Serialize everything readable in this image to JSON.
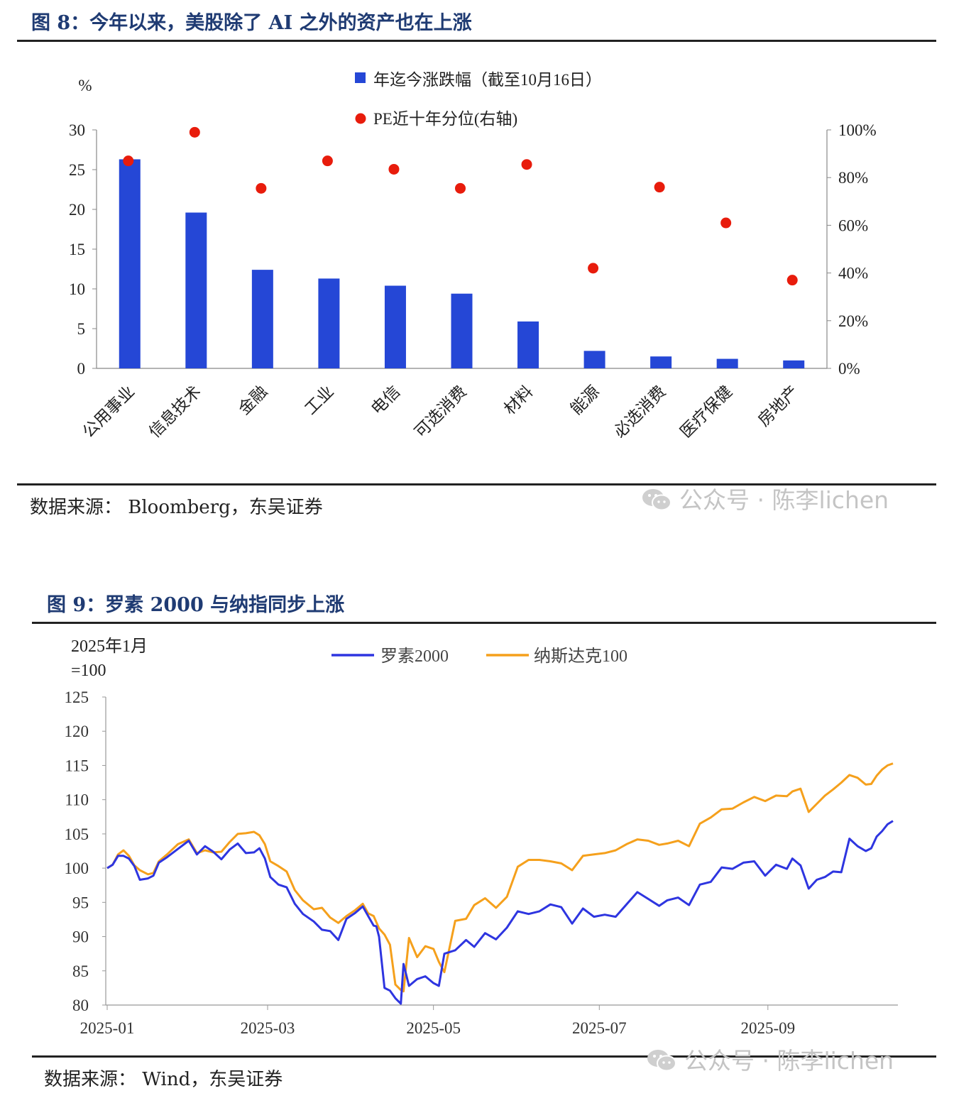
{
  "figure8": {
    "title": "图 8：今年以来，美股除了 AI 之外的资产也在上涨",
    "source": "数据来源：  Bloomberg，东吴证券",
    "watermark": "公众号 · 陈李lichen"
  },
  "figure9": {
    "title": "图 9：罗素 2000 与纳指同步上涨",
    "source": "数据来源：  Wind，东吴证券",
    "watermark": "公众号 · 陈李lichen"
  },
  "colors": {
    "bar": "#2547d6",
    "dot": "#e81c0c",
    "russell": "#2e35e0",
    "nasdaq": "#f5a01c",
    "title": "#1f3b73"
  },
  "chart_data": [
    {
      "type": "bar",
      "ylabel": "%",
      "ylim": [
        0,
        30
      ],
      "yticks": [
        "0",
        "5",
        "10",
        "15",
        "20",
        "25",
        "30"
      ],
      "y2lim": [
        0,
        100
      ],
      "y2ticks": [
        "0%",
        "20%",
        "40%",
        "60%",
        "80%",
        "100%"
      ],
      "categories": [
        "公用事业",
        "信息技术",
        "金融",
        "工业",
        "电信",
        "可选消费",
        "材料",
        "能源",
        "必选消费",
        "医疗保健",
        "房地产"
      ],
      "series": [
        {
          "name": "年迄今涨跌幅（截至10月16日）",
          "kind": "bar",
          "axis": "left",
          "values": [
            26.3,
            19.6,
            12.4,
            11.3,
            10.4,
            9.4,
            5.9,
            2.2,
            1.5,
            1.2,
            1.0
          ]
        },
        {
          "name": "PE近十年分位(右轴)",
          "kind": "scatter",
          "axis": "right",
          "values": [
            87,
            99,
            75.5,
            87,
            83.5,
            75.5,
            85.5,
            42,
            76,
            61,
            37
          ]
        }
      ]
    },
    {
      "type": "line",
      "ylabel_line1": "2025年1月",
      "ylabel_line2": "=100",
      "ylim": [
        80,
        125
      ],
      "yticks": [
        "80",
        "85",
        "90",
        "95",
        "100",
        "105",
        "110",
        "115",
        "120",
        "125"
      ],
      "xlim": [
        "2025-01-01",
        "2025-10-17"
      ],
      "xticks": [
        {
          "date": "2025-01-01",
          "label": "2025-01"
        },
        {
          "date": "2025-03-01",
          "label": "2025-03"
        },
        {
          "date": "2025-05-01",
          "label": "2025-05"
        },
        {
          "date": "2025-07-01",
          "label": "2025-07"
        },
        {
          "date": "2025-09-01",
          "label": "2025-09"
        }
      ],
      "series": [
        {
          "name": "罗素2000",
          "points": [
            [
              "2025-01-01",
              100
            ],
            [
              "2025-01-03",
              100.5
            ],
            [
              "2025-01-05",
              101.8
            ],
            [
              "2025-01-07",
              101.8
            ],
            [
              "2025-01-09",
              101.4
            ],
            [
              "2025-01-11",
              100.3
            ],
            [
              "2025-01-13",
              98.3
            ],
            [
              "2025-01-16",
              98.5
            ],
            [
              "2025-01-18",
              98.9
            ],
            [
              "2025-01-20",
              100.8
            ],
            [
              "2025-01-23",
              101.6
            ],
            [
              "2025-01-27",
              102.8
            ],
            [
              "2025-01-31",
              104.0
            ],
            [
              "2025-02-03",
              102.0
            ],
            [
              "2025-02-06",
              103.2
            ],
            [
              "2025-02-09",
              102.4
            ],
            [
              "2025-02-12",
              101.3
            ],
            [
              "2025-02-15",
              102.7
            ],
            [
              "2025-02-18",
              103.6
            ],
            [
              "2025-02-21",
              102.2
            ],
            [
              "2025-02-24",
              102.3
            ],
            [
              "2025-02-26",
              102.9
            ],
            [
              "2025-02-28",
              101.4
            ],
            [
              "2025-03-02",
              98.7
            ],
            [
              "2025-03-05",
              97.6
            ],
            [
              "2025-03-08",
              97.2
            ],
            [
              "2025-03-11",
              94.8
            ],
            [
              "2025-03-14",
              93.3
            ],
            [
              "2025-03-18",
              92.2
            ],
            [
              "2025-03-21",
              91.0
            ],
            [
              "2025-03-24",
              90.8
            ],
            [
              "2025-03-27",
              89.5
            ],
            [
              "2025-03-30",
              92.6
            ],
            [
              "2025-04-02",
              93.4
            ],
            [
              "2025-04-05",
              94.4
            ],
            [
              "2025-04-07",
              93.0
            ],
            [
              "2025-04-09",
              91.6
            ],
            [
              "2025-04-10",
              91.5
            ],
            [
              "2025-04-11",
              90.0
            ],
            [
              "2025-04-13",
              82.5
            ],
            [
              "2025-04-15",
              82.1
            ],
            [
              "2025-04-17",
              81.0
            ],
            [
              "2025-04-19",
              80.2
            ],
            [
              "2025-04-20",
              86.0
            ],
            [
              "2025-04-22",
              82.8
            ],
            [
              "2025-04-25",
              83.8
            ],
            [
              "2025-04-28",
              84.2
            ],
            [
              "2025-05-01",
              83.2
            ],
            [
              "2025-05-03",
              82.8
            ],
            [
              "2025-05-05",
              87.5
            ],
            [
              "2025-05-09",
              88.0
            ],
            [
              "2025-05-13",
              89.5
            ],
            [
              "2025-05-16",
              88.5
            ],
            [
              "2025-05-20",
              90.5
            ],
            [
              "2025-05-24",
              89.6
            ],
            [
              "2025-05-28",
              91.3
            ],
            [
              "2025-06-01",
              93.7
            ],
            [
              "2025-06-05",
              93.3
            ],
            [
              "2025-06-09",
              93.7
            ],
            [
              "2025-06-13",
              94.7
            ],
            [
              "2025-06-17",
              94.3
            ],
            [
              "2025-06-21",
              91.9
            ],
            [
              "2025-06-25",
              94.1
            ],
            [
              "2025-06-29",
              92.9
            ],
            [
              "2025-07-03",
              93.2
            ],
            [
              "2025-07-07",
              92.9
            ],
            [
              "2025-07-11",
              94.7
            ],
            [
              "2025-07-15",
              96.5
            ],
            [
              "2025-07-19",
              95.5
            ],
            [
              "2025-07-23",
              94.5
            ],
            [
              "2025-07-26",
              95.3
            ],
            [
              "2025-07-30",
              95.7
            ],
            [
              "2025-08-03",
              94.6
            ],
            [
              "2025-08-07",
              97.6
            ],
            [
              "2025-08-11",
              98.0
            ],
            [
              "2025-08-15",
              100.1
            ],
            [
              "2025-08-19",
              99.9
            ],
            [
              "2025-08-23",
              100.8
            ],
            [
              "2025-08-27",
              101.0
            ],
            [
              "2025-08-31",
              98.9
            ],
            [
              "2025-09-04",
              100.5
            ],
            [
              "2025-09-08",
              99.9
            ],
            [
              "2025-09-10",
              101.4
            ],
            [
              "2025-09-13",
              100.4
            ],
            [
              "2025-09-16",
              97.0
            ],
            [
              "2025-09-19",
              98.3
            ],
            [
              "2025-09-22",
              98.7
            ],
            [
              "2025-09-25",
              99.5
            ],
            [
              "2025-09-28",
              99.4
            ],
            [
              "2025-10-01",
              104.3
            ],
            [
              "2025-10-04",
              103.2
            ],
            [
              "2025-10-07",
              102.5
            ],
            [
              "2025-10-09",
              102.9
            ],
            [
              "2025-10-11",
              104.6
            ],
            [
              "2025-10-13",
              105.4
            ],
            [
              "2025-10-15",
              106.4
            ],
            [
              "2025-10-17",
              106.9
            ]
          ]
        },
        {
          "name": "纳斯达克100",
          "points": [
            [
              "2025-01-01",
              100
            ],
            [
              "2025-01-03",
              100.5
            ],
            [
              "2025-01-05",
              102.0
            ],
            [
              "2025-01-07",
              102.6
            ],
            [
              "2025-01-09",
              101.8
            ],
            [
              "2025-01-11",
              100.4
            ],
            [
              "2025-01-13",
              99.7
            ],
            [
              "2025-01-16",
              99.1
            ],
            [
              "2025-01-18",
              99.3
            ],
            [
              "2025-01-20",
              101.0
            ],
            [
              "2025-01-23",
              102.0
            ],
            [
              "2025-01-27",
              103.5
            ],
            [
              "2025-01-31",
              104.2
            ],
            [
              "2025-02-03",
              102.2
            ],
            [
              "2025-02-06",
              102.6
            ],
            [
              "2025-02-09",
              102.3
            ],
            [
              "2025-02-12",
              102.4
            ],
            [
              "2025-02-15",
              103.8
            ],
            [
              "2025-02-18",
              105.0
            ],
            [
              "2025-02-21",
              105.1
            ],
            [
              "2025-02-24",
              105.3
            ],
            [
              "2025-02-26",
              104.8
            ],
            [
              "2025-02-28",
              103.5
            ],
            [
              "2025-03-02",
              101.0
            ],
            [
              "2025-03-05",
              100.3
            ],
            [
              "2025-03-08",
              99.5
            ],
            [
              "2025-03-11",
              96.8
            ],
            [
              "2025-03-14",
              95.3
            ],
            [
              "2025-03-18",
              94.0
            ],
            [
              "2025-03-21",
              94.2
            ],
            [
              "2025-03-24",
              92.8
            ],
            [
              "2025-03-27",
              92.0
            ],
            [
              "2025-03-30",
              93.0
            ],
            [
              "2025-04-02",
              93.8
            ],
            [
              "2025-04-05",
              94.8
            ],
            [
              "2025-04-07",
              93.4
            ],
            [
              "2025-04-09",
              93.0
            ],
            [
              "2025-04-10",
              92.1
            ],
            [
              "2025-04-11",
              91.2
            ],
            [
              "2025-04-13",
              90.3
            ],
            [
              "2025-04-15",
              88.8
            ],
            [
              "2025-04-17",
              83.0
            ],
            [
              "2025-04-19",
              82.2
            ],
            [
              "2025-04-20",
              82.0
            ],
            [
              "2025-04-22",
              89.8
            ],
            [
              "2025-04-25",
              87.0
            ],
            [
              "2025-04-28",
              88.6
            ],
            [
              "2025-05-01",
              88.2
            ],
            [
              "2025-05-03",
              86.3
            ],
            [
              "2025-05-05",
              84.8
            ],
            [
              "2025-05-09",
              92.3
            ],
            [
              "2025-05-13",
              92.6
            ],
            [
              "2025-05-16",
              94.6
            ],
            [
              "2025-05-20",
              95.6
            ],
            [
              "2025-05-24",
              94.2
            ],
            [
              "2025-05-28",
              95.8
            ],
            [
              "2025-06-01",
              100.2
            ],
            [
              "2025-06-05",
              101.2
            ],
            [
              "2025-06-09",
              101.2
            ],
            [
              "2025-06-13",
              101.0
            ],
            [
              "2025-06-17",
              100.7
            ],
            [
              "2025-06-21",
              99.7
            ],
            [
              "2025-06-25",
              101.8
            ],
            [
              "2025-06-29",
              102.0
            ],
            [
              "2025-07-03",
              102.2
            ],
            [
              "2025-07-07",
              102.6
            ],
            [
              "2025-07-11",
              103.5
            ],
            [
              "2025-07-15",
              104.2
            ],
            [
              "2025-07-19",
              104.0
            ],
            [
              "2025-07-23",
              103.4
            ],
            [
              "2025-07-26",
              103.6
            ],
            [
              "2025-07-30",
              104.0
            ],
            [
              "2025-08-03",
              103.2
            ],
            [
              "2025-08-07",
              106.5
            ],
            [
              "2025-08-11",
              107.4
            ],
            [
              "2025-08-15",
              108.6
            ],
            [
              "2025-08-19",
              108.7
            ],
            [
              "2025-08-23",
              109.6
            ],
            [
              "2025-08-27",
              110.4
            ],
            [
              "2025-08-31",
              109.8
            ],
            [
              "2025-09-04",
              110.6
            ],
            [
              "2025-09-08",
              110.5
            ],
            [
              "2025-09-10",
              111.2
            ],
            [
              "2025-09-13",
              111.6
            ],
            [
              "2025-09-16",
              108.2
            ],
            [
              "2025-09-19",
              109.4
            ],
            [
              "2025-09-22",
              110.6
            ],
            [
              "2025-09-25",
              111.5
            ],
            [
              "2025-09-28",
              112.5
            ],
            [
              "2025-10-01",
              113.6
            ],
            [
              "2025-10-04",
              113.2
            ],
            [
              "2025-10-07",
              112.2
            ],
            [
              "2025-10-09",
              112.3
            ],
            [
              "2025-10-11",
              113.5
            ],
            [
              "2025-10-13",
              114.4
            ],
            [
              "2025-10-15",
              115.0
            ],
            [
              "2025-10-17",
              115.3
            ]
          ]
        }
      ]
    }
  ]
}
